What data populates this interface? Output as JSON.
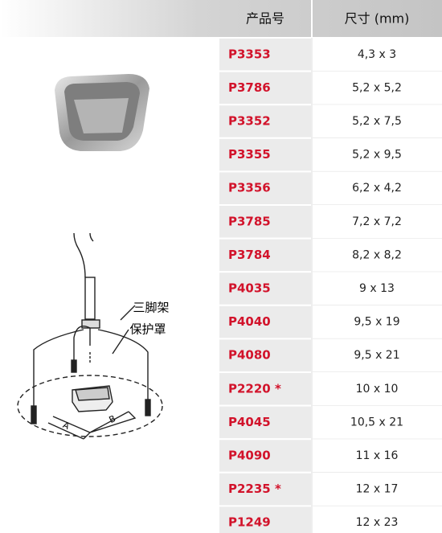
{
  "table": {
    "header": [
      "产品号",
      "尺寸 (mm)"
    ],
    "rows": [
      [
        "P3353",
        "4,3 x 3"
      ],
      [
        "P3786",
        "5,2 x 5,2"
      ],
      [
        "P3352",
        "5,2 x 7,5"
      ],
      [
        "P3355",
        "5,2 x 9,5"
      ],
      [
        "P3356",
        "6,2 x 4,2"
      ],
      [
        "P3785",
        "7,2 x 7,2"
      ],
      [
        "P3784",
        "8,2 x 8,2"
      ],
      [
        "P4035",
        "9 x 13"
      ],
      [
        "P4040",
        "9,5 x 19"
      ],
      [
        "P4080",
        "9,5 x 21"
      ],
      [
        "P2220 *",
        "10 x 10"
      ],
      [
        "P4045",
        "10,5 x 21"
      ],
      [
        "P4090",
        "11 x 16"
      ],
      [
        "P2235 *",
        "12 x 17"
      ],
      [
        "P1249",
        "12 x 23"
      ]
    ]
  },
  "diagram": {
    "labels": [
      "三脚架",
      "保护罩"
    ],
    "dimensions": [
      "A",
      "B"
    ]
  }
}
